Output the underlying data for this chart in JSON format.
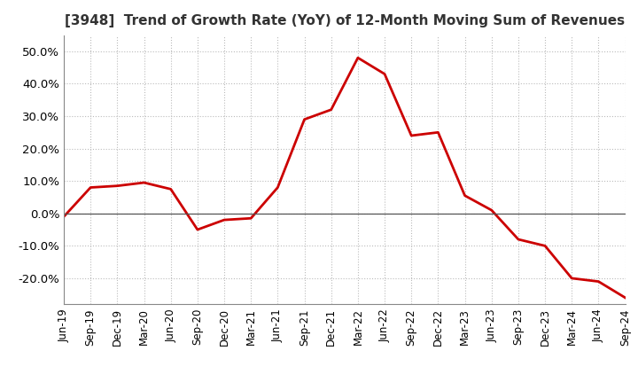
{
  "title": "[3948]  Trend of Growth Rate (YoY) of 12-Month Moving Sum of Revenues",
  "x_labels": [
    "Jun-19",
    "Sep-19",
    "Dec-19",
    "Mar-20",
    "Jun-20",
    "Sep-20",
    "Dec-20",
    "Mar-21",
    "Jun-21",
    "Sep-21",
    "Dec-21",
    "Mar-22",
    "Jun-22",
    "Sep-22",
    "Dec-22",
    "Mar-23",
    "Jun-23",
    "Sep-23",
    "Dec-23",
    "Mar-24",
    "Jun-24",
    "Sep-24"
  ],
  "values": [
    -1.0,
    8.0,
    8.5,
    9.5,
    7.5,
    -5.0,
    -2.0,
    -1.5,
    8.0,
    29.0,
    32.0,
    48.0,
    43.0,
    24.0,
    25.0,
    5.5,
    1.0,
    -8.0,
    -10.0,
    -20.0,
    -21.0,
    -26.0
  ],
  "line_color": "#cc0000",
  "background_color": "#ffffff",
  "grid_color": "#bbbbbb",
  "title_color": "#333333",
  "ylim": [
    -28,
    55
  ],
  "yticks": [
    -20.0,
    -10.0,
    0.0,
    10.0,
    20.0,
    30.0,
    40.0,
    50.0
  ]
}
